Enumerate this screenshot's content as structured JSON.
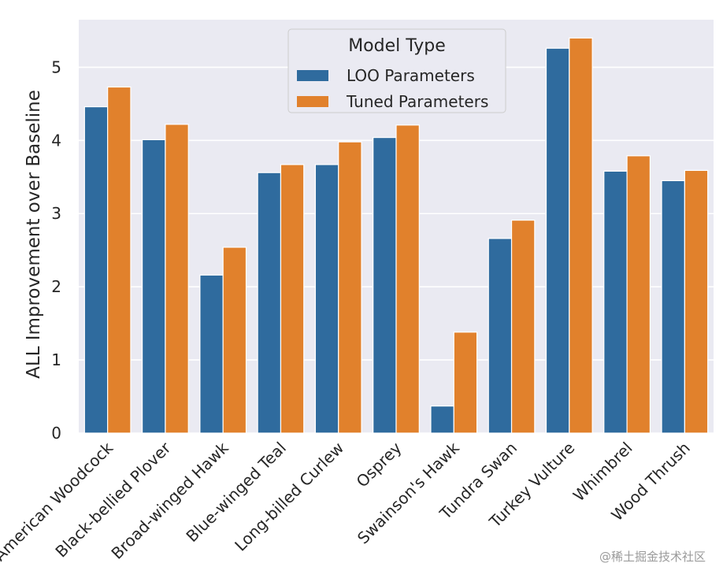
{
  "chart_data": {
    "type": "bar",
    "title": "",
    "xlabel": "",
    "ylabel": "ALL Improvement over Baseline",
    "ylim": [
      0,
      5.65
    ],
    "yticks": [
      0,
      1,
      2,
      3,
      4,
      5
    ],
    "grid": true,
    "legend": {
      "title": "Model Type",
      "placement": "top-center"
    },
    "categories": [
      "American Woodcock",
      "Black-bellied Plover",
      "Broad-winged Hawk",
      "Blue-winged Teal",
      "Long-billed Curlew",
      "Osprey",
      "Swainson's Hawk",
      "Tundra Swan",
      "Turkey Vulture",
      "Whimbrel",
      "Wood Thrush"
    ],
    "series": [
      {
        "name": "LOO Parameters",
        "color": "#2f6b9e",
        "values": [
          4.46,
          4.01,
          2.16,
          3.56,
          3.67,
          4.04,
          0.37,
          2.66,
          5.26,
          3.58,
          3.45
        ]
      },
      {
        "name": "Tuned Parameters",
        "color": "#e1812c",
        "values": [
          4.73,
          4.22,
          2.54,
          3.67,
          3.98,
          4.21,
          1.38,
          2.91,
          5.4,
          3.79,
          3.59
        ]
      }
    ]
  },
  "style": {
    "plot_background": "#eaeaf2",
    "grid_color": "#ffffff",
    "text_color": "#262626"
  },
  "watermark": "@稀土掘金技术社区"
}
